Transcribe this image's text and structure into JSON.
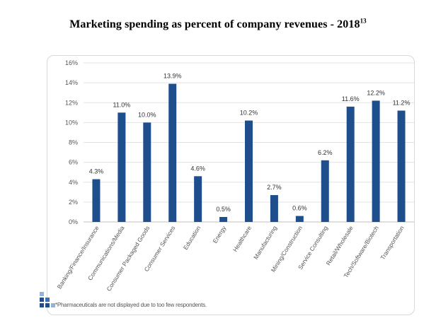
{
  "title": {
    "text": "Marketing spending as percent of company revenues - 2018",
    "superscript": "13"
  },
  "footnote": "*Pharmaceuticals are not displayed due to too few respondents.",
  "logo_icon": "square-blocks-logo-icon",
  "colors": {
    "bar": "#1f4e8c",
    "axis_text": "#555555",
    "gridline": "#e3e3e3",
    "label_text": "#333333"
  },
  "chart_data": {
    "type": "bar",
    "categories": [
      "Banking/Finance/Insurance",
      "Communications/Media",
      "Consumer Packaged Goods",
      "Consumer Services",
      "Education",
      "Energy",
      "Healthcare",
      "Manufacturing",
      "Mining/Construction",
      "Service Consulting",
      "Retail/Wholesale",
      "Tech/Software/Biotech",
      "Transportation"
    ],
    "values": [
      4.3,
      11.0,
      10.0,
      13.9,
      4.6,
      0.5,
      10.2,
      2.7,
      0.6,
      6.2,
      11.6,
      12.2,
      11.2
    ],
    "data_labels": [
      "4.3%",
      "11.0%",
      "10.0%",
      "13.9%",
      "4.6%",
      "0.5%",
      "10.2%",
      "2.7%",
      "0.6%",
      "6.2%",
      "11.6%",
      "12.2%",
      "11.2%"
    ],
    "yticks": [
      0,
      2,
      4,
      6,
      8,
      10,
      12,
      14,
      16
    ],
    "ytick_labels": [
      "0%",
      "2%",
      "4%",
      "6%",
      "8%",
      "10%",
      "12%",
      "14%",
      "16%"
    ],
    "ylim": [
      0,
      16
    ],
    "grid": true,
    "legend": "none",
    "xlabel": "",
    "ylabel": ""
  }
}
